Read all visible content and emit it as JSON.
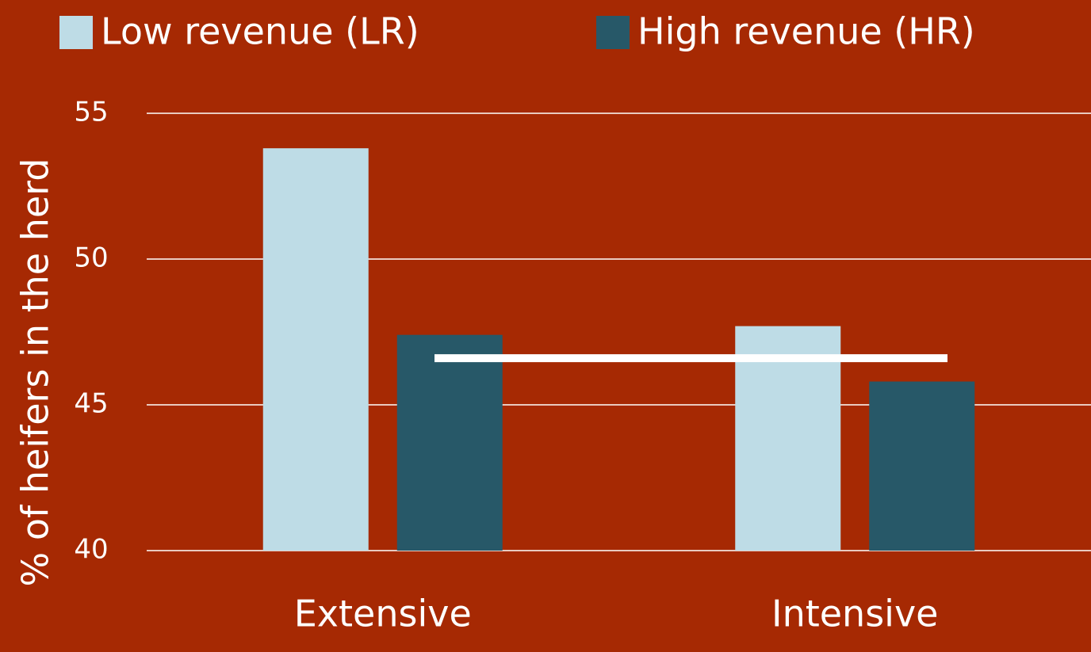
{
  "chart_data": {
    "type": "bar",
    "y_label": "% of heifers in the herd",
    "categories": [
      "Extensive",
      "Intensive"
    ],
    "series": [
      {
        "name": "Low revenue (LR)",
        "color": "#bedce6",
        "values": [
          53.8,
          47.7
        ]
      },
      {
        "name": "High revenue (HR)",
        "color": "#275868",
        "values": [
          47.4,
          45.8
        ]
      }
    ],
    "reference_line": {
      "value": 46.6,
      "color": "#ffffff"
    },
    "ylim": [
      40,
      55
    ],
    "yticks": [
      40,
      45,
      50,
      55
    ],
    "grid": true,
    "legend": "top",
    "background": "#a62903"
  }
}
